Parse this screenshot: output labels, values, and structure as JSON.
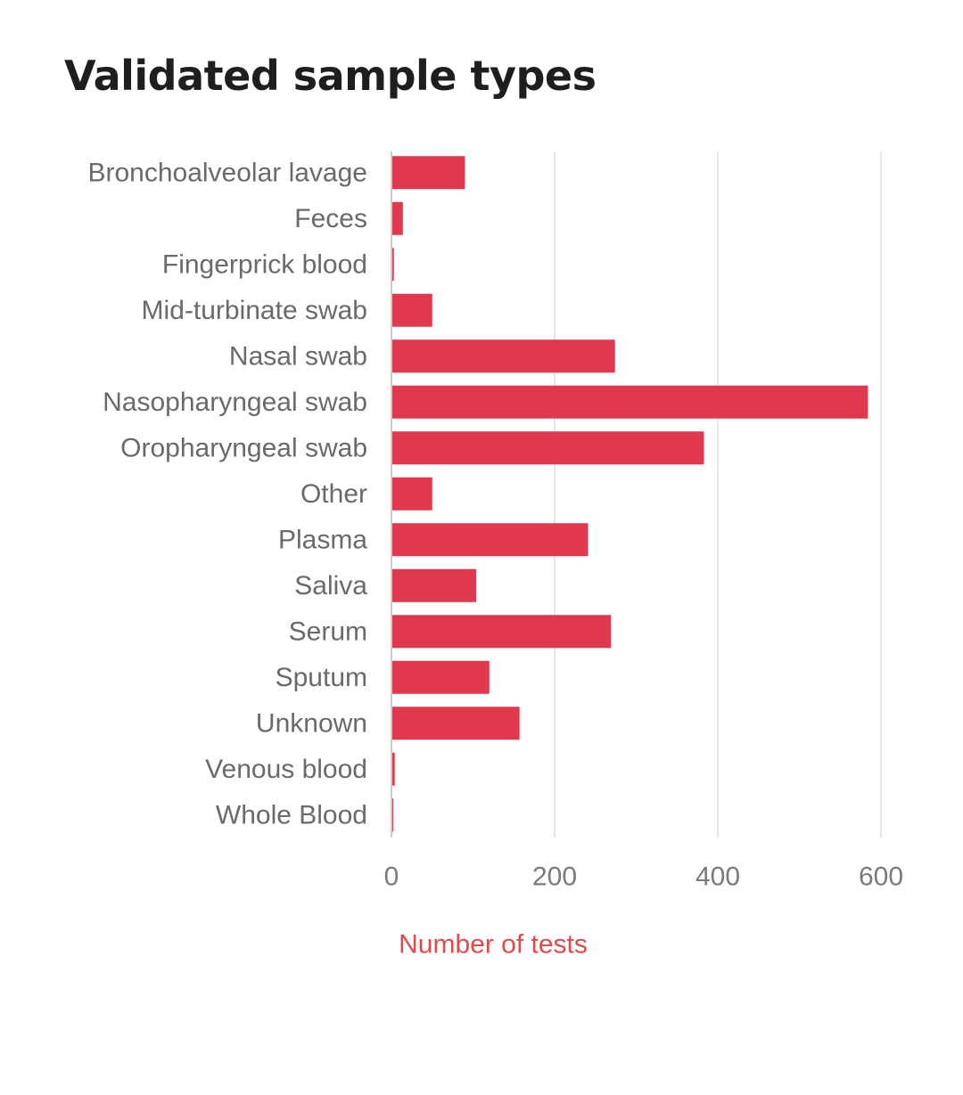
{
  "page": {
    "title": "Validated sample types"
  },
  "chart_data": {
    "type": "bar",
    "orientation": "horizontal",
    "title": "Validated sample types",
    "xlabel": "Number of tests",
    "ylabel": "",
    "xlim": [
      0,
      600
    ],
    "xticks": [
      0,
      200,
      400,
      600
    ],
    "grid": true,
    "legend": "none",
    "categories": [
      "Bronchoalveolar lavage",
      "Feces",
      "Fingerprick blood",
      "Mid-turbinate swab",
      "Nasal swab",
      "Nasopharyngeal swab",
      "Oropharyngeal swab",
      "Other",
      "Plasma",
      "Saliva",
      "Serum",
      "Sputum",
      "Unknown",
      "Venous blood",
      "Whole Blood"
    ],
    "values": [
      90,
      14,
      3,
      50,
      274,
      584,
      383,
      50,
      241,
      104,
      269,
      120,
      157,
      4,
      2
    ],
    "colors": {
      "bar": "#e0394d",
      "axis_title": "#e24a4a",
      "grid": "#e6e6e6",
      "axis": "#cccccc"
    }
  }
}
